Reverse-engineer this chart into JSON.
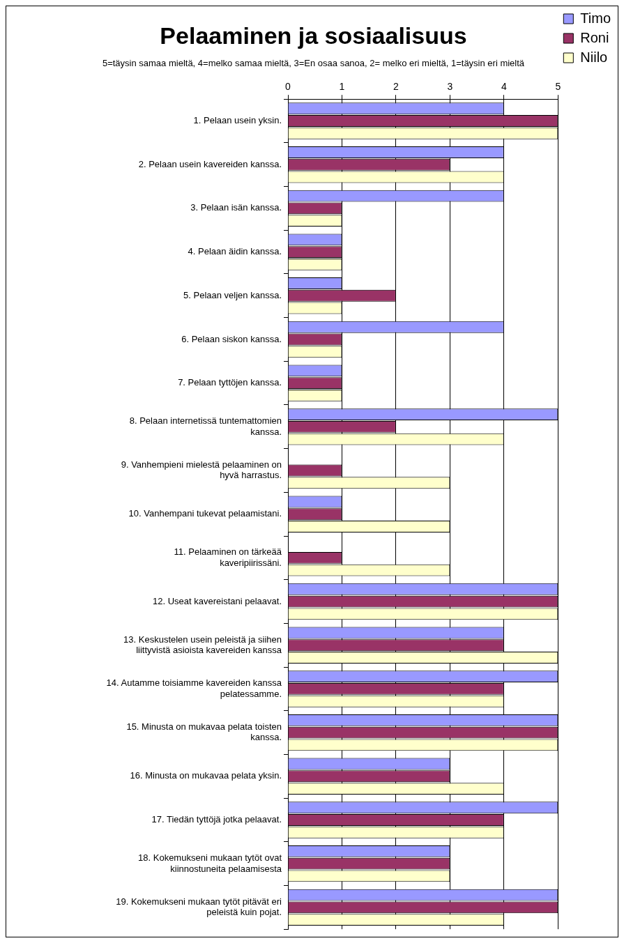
{
  "chart_data": {
    "type": "bar",
    "orientation": "horizontal",
    "title": "Pelaaminen ja sosiaalisuus",
    "subtitle": "5=täysin samaa mieltä, 4=melko samaa mieltä, 3=En osaa sanoa, 2= melko eri mieltä, 1=täysin eri mieltä",
    "categories": [
      "1. Pelaan usein yksin.",
      "2. Pelaan usein kavereiden kanssa.",
      "3. Pelaan isän kanssa.",
      "4. Pelaan äidin kanssa.",
      "5. Pelaan veljen kanssa.",
      "6. Pelaan siskon kanssa.",
      "7. Pelaan tyttöjen kanssa.",
      "8. Pelaan internetissä tuntemattomien kanssa.",
      "9. Vanhempieni mielestä pelaaminen on hyvä harrastus.",
      "10. Vanhempani tukevat pelaamistani.",
      "11. Pelaaminen on tärkeää kaveripiirissäni.",
      "12. Useat kavereistani pelaavat.",
      "13. Keskustelen usein peleistä ja siihen liittyvistä asioista kavereiden kanssa",
      "14. Autamme toisiamme kavereiden kanssa pelatessamme.",
      "15. Minusta on mukavaa pelata toisten kanssa.",
      "16. Minusta on mukavaa pelata yksin.",
      "17. Tiedän tyttöjä jotka pelaavat.",
      "18. Kokemukseni mukaan tytöt ovat kiinnostuneita pelaamisesta",
      "19. Kokemukseni mukaan tytöt pitävät eri peleistä kuin pojat."
    ],
    "series": [
      {
        "name": "Timo",
        "color": "#9999ff",
        "values": [
          4,
          4,
          4,
          1,
          1,
          4,
          1,
          5,
          null,
          1,
          null,
          5,
          4,
          5,
          5,
          3,
          5,
          3,
          5
        ]
      },
      {
        "name": "Roni",
        "color": "#993366",
        "values": [
          5,
          3,
          1,
          1,
          2,
          1,
          1,
          2,
          1,
          1,
          1,
          5,
          4,
          4,
          5,
          3,
          4,
          3,
          5
        ]
      },
      {
        "name": "Niilo",
        "color": "#ffffcc",
        "values": [
          5,
          4,
          1,
          1,
          1,
          1,
          1,
          4,
          3,
          3,
          3,
          5,
          5,
          4,
          5,
          4,
          4,
          3,
          4
        ]
      }
    ],
    "xlim": [
      0,
      5
    ],
    "xticks": [
      0,
      1,
      2,
      3,
      4,
      5
    ],
    "grid": "x",
    "legend": "top right"
  }
}
